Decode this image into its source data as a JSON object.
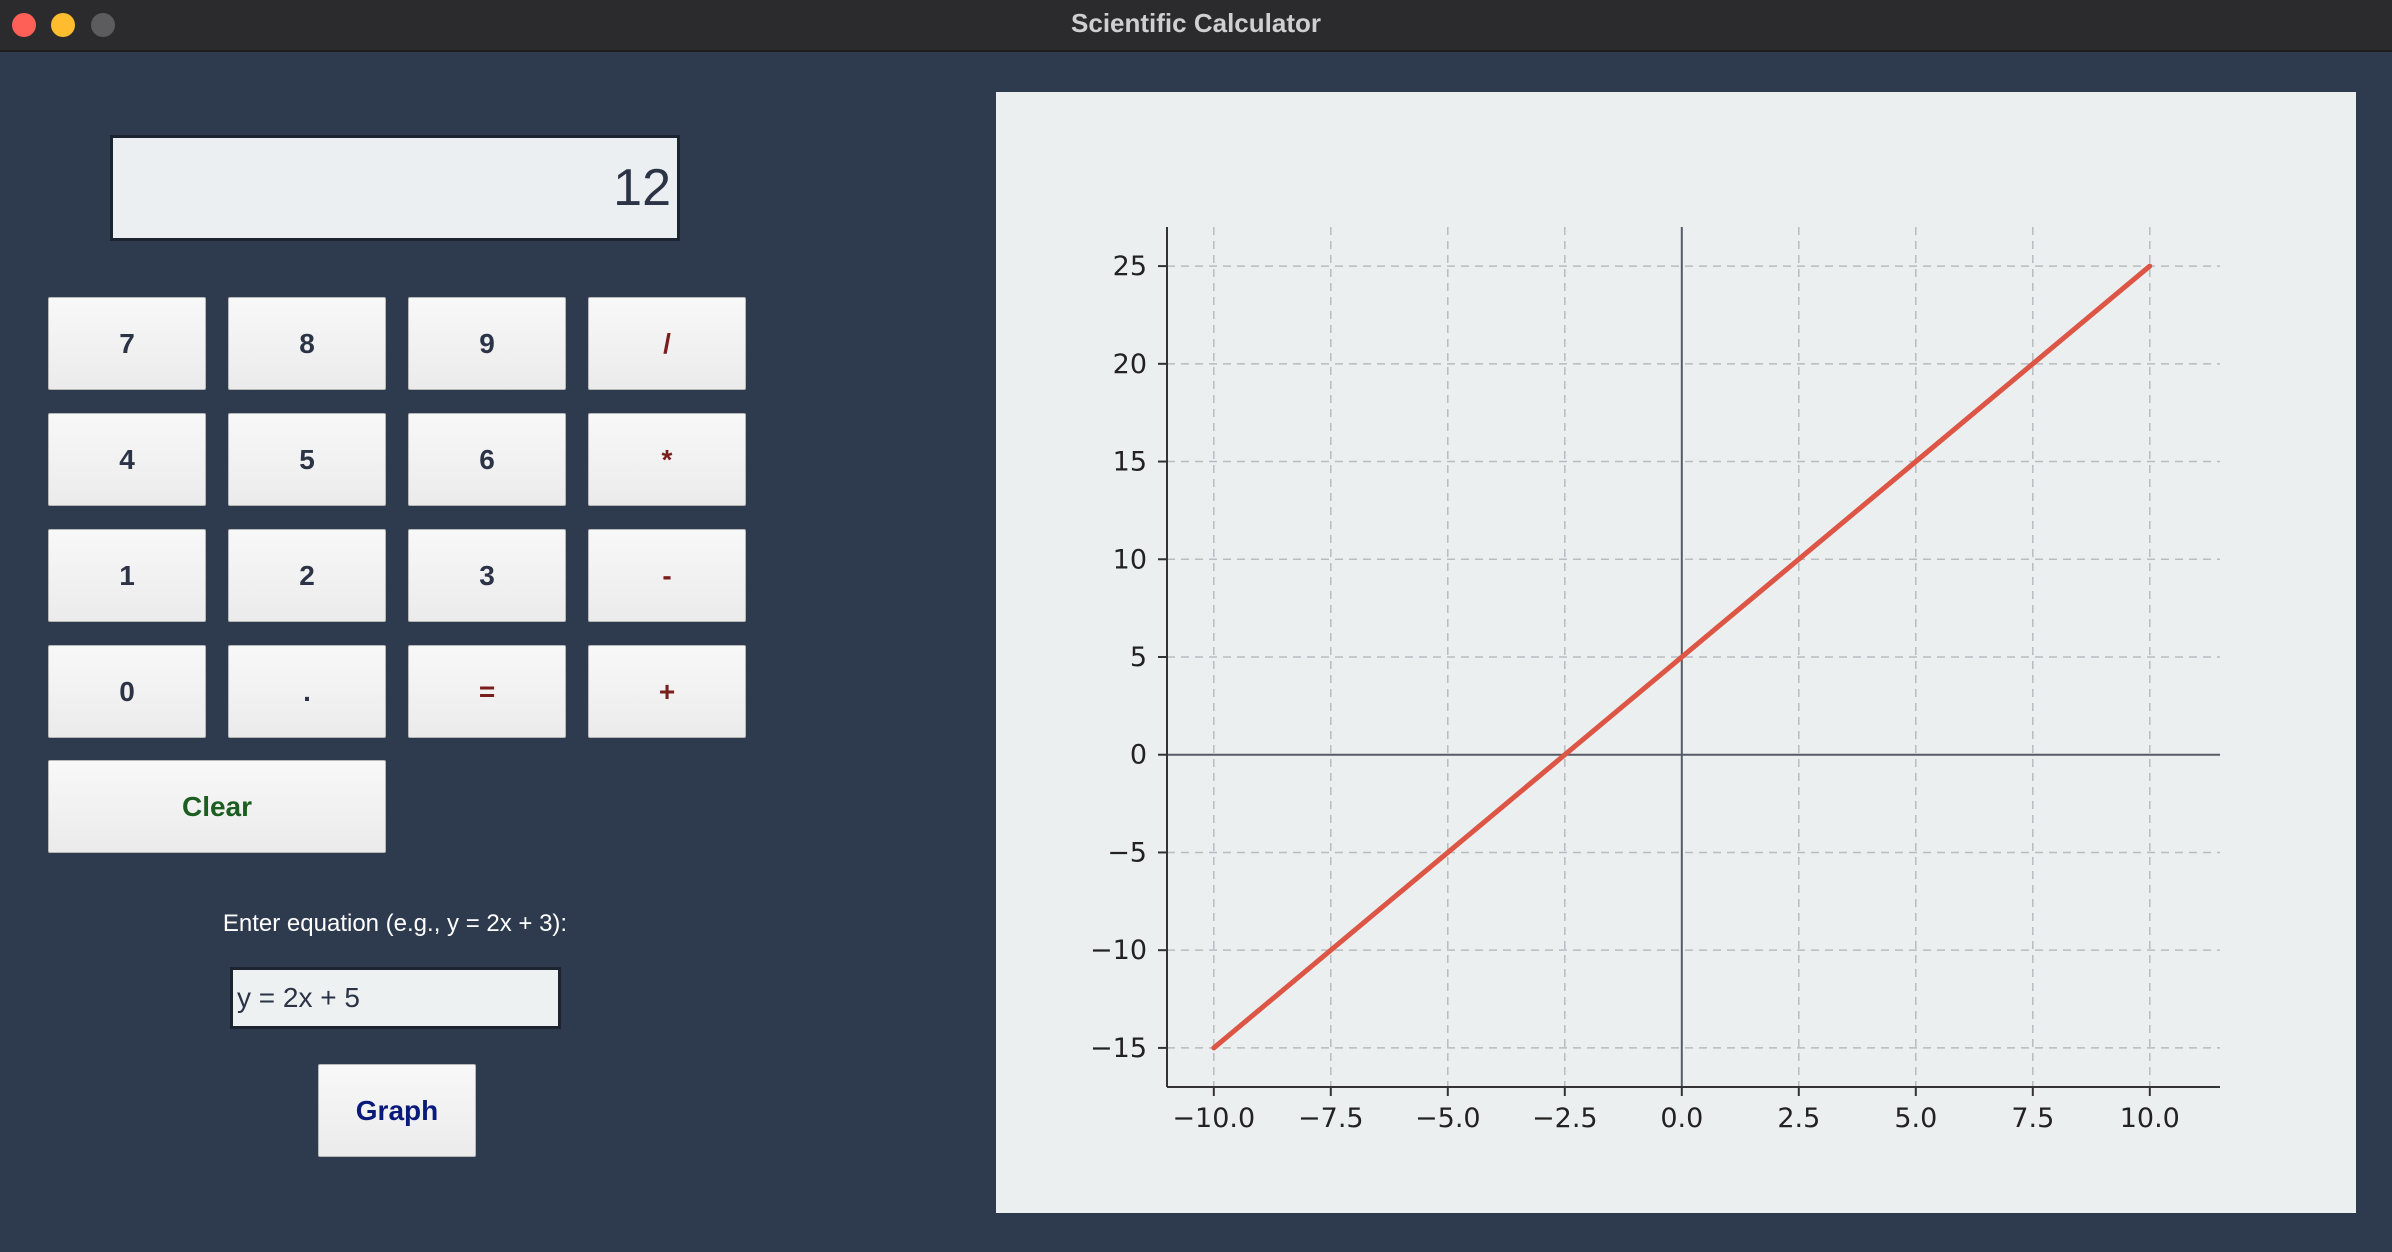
{
  "window": {
    "title": "Scientific Calculator"
  },
  "display": {
    "value": "12"
  },
  "keypad": {
    "keys": [
      {
        "label": "7",
        "name": "key-7",
        "type": "digit"
      },
      {
        "label": "8",
        "name": "key-8",
        "type": "digit"
      },
      {
        "label": "9",
        "name": "key-9",
        "type": "digit"
      },
      {
        "label": "/",
        "name": "key-divide",
        "type": "op"
      },
      {
        "label": "4",
        "name": "key-4",
        "type": "digit"
      },
      {
        "label": "5",
        "name": "key-5",
        "type": "digit"
      },
      {
        "label": "6",
        "name": "key-6",
        "type": "digit"
      },
      {
        "label": "*",
        "name": "key-multiply",
        "type": "op"
      },
      {
        "label": "1",
        "name": "key-1",
        "type": "digit"
      },
      {
        "label": "2",
        "name": "key-2",
        "type": "digit"
      },
      {
        "label": "3",
        "name": "key-3",
        "type": "digit"
      },
      {
        "label": "-",
        "name": "key-subtract",
        "type": "op"
      },
      {
        "label": "0",
        "name": "key-0",
        "type": "digit"
      },
      {
        "label": ".",
        "name": "key-decimal",
        "type": "digit"
      },
      {
        "label": "=",
        "name": "key-equals",
        "type": "op"
      },
      {
        "label": "+",
        "name": "key-add",
        "type": "op"
      }
    ],
    "clear_label": "Clear"
  },
  "equation": {
    "label": "Enter equation (e.g., y = 2x + 3):",
    "value": "y = 2x + 5"
  },
  "graph_button": {
    "label": "Graph"
  },
  "colors": {
    "background": "#2e3a4e",
    "line": "#dd5545",
    "digit_text": "#2b3346",
    "operator_text": "#7a1d1d",
    "clear_text": "#1b5e20",
    "graph_text": "#0a1a7a"
  },
  "chart_data": {
    "type": "line",
    "grid": true,
    "x_ticks": [
      "−10.0",
      "−7.5",
      "−5.0",
      "−2.5",
      "0.0",
      "2.5",
      "5.0",
      "7.5",
      "10.0"
    ],
    "y_ticks": [
      "−15",
      "−10",
      "−5",
      "0",
      "5",
      "10",
      "15",
      "20",
      "25"
    ],
    "xlim": [
      -11,
      11.5
    ],
    "ylim": [
      -17,
      27
    ],
    "series": [
      {
        "x": [
          -10,
          10
        ],
        "y": [
          -15,
          25
        ]
      }
    ]
  }
}
